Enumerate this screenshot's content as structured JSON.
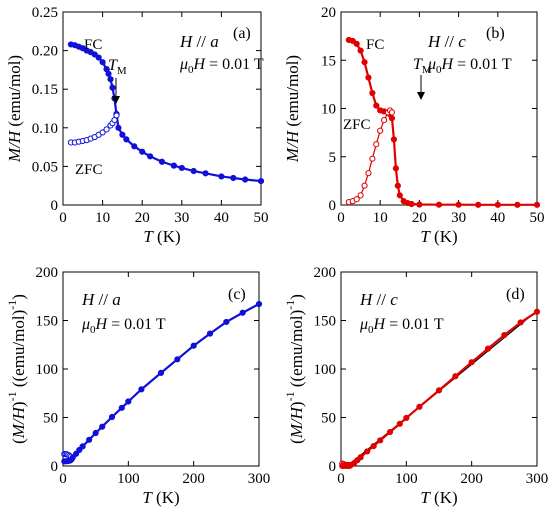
{
  "chart_data": [
    {
      "panel_label": "(a)",
      "type": "scatter",
      "xlabel": "T (K)",
      "ylabel": "M/H (emu/mol)",
      "xlim": [
        0,
        50
      ],
      "ylim": [
        0,
        0.25
      ],
      "xticks": [
        0,
        10,
        20,
        30,
        40,
        50
      ],
      "yticks": [
        0,
        0.05,
        0.1,
        0.15,
        0.2,
        0.25
      ],
      "ytick_labels": [
        "0",
        "0.05",
        "0.10",
        "0.15",
        "0.20",
        "0.25"
      ],
      "annotations": {
        "field_dir": "H // a",
        "field_value": "μ0H = 0.01 T",
        "tm_label": "TM",
        "fc_label": "FC",
        "zfc_label": "ZFC"
      },
      "color": "#1010d8",
      "series": [
        {
          "name": "FC",
          "marker": "filled",
          "x": [
            2,
            3,
            4,
            5,
            6,
            7,
            8,
            9,
            10,
            11,
            11.5,
            12,
            12.5,
            13,
            13.5,
            14,
            15,
            16,
            18,
            20,
            22,
            25,
            28,
            30,
            33,
            36,
            40,
            43,
            46,
            50
          ],
          "y": [
            0.208,
            0.207,
            0.205,
            0.203,
            0.2,
            0.198,
            0.195,
            0.191,
            0.185,
            0.176,
            0.17,
            0.163,
            0.152,
            0.138,
            0.118,
            0.1,
            0.091,
            0.085,
            0.076,
            0.069,
            0.063,
            0.056,
            0.051,
            0.048,
            0.044,
            0.041,
            0.037,
            0.035,
            0.033,
            0.031
          ]
        },
        {
          "name": "ZFC",
          "marker": "open",
          "x": [
            2,
            3,
            4,
            5,
            6,
            7,
            8,
            9,
            10,
            11,
            12,
            12.5,
            13,
            13.5
          ],
          "y": [
            0.081,
            0.081,
            0.082,
            0.083,
            0.084,
            0.086,
            0.088,
            0.091,
            0.094,
            0.098,
            0.103,
            0.106,
            0.11,
            0.116
          ]
        }
      ]
    },
    {
      "panel_label": "(b)",
      "type": "scatter",
      "xlabel": "T (K)",
      "ylabel": "M/H (emu/mol)",
      "xlim": [
        0,
        50
      ],
      "ylim": [
        0,
        20
      ],
      "xticks": [
        0,
        10,
        20,
        30,
        40,
        50
      ],
      "yticks": [
        0,
        5,
        10,
        15,
        20
      ],
      "ytick_labels": [
        "0",
        "5",
        "10",
        "15",
        "20"
      ],
      "annotations": {
        "field_dir": "H // c",
        "field_value": "μ0H = 0.01 T",
        "tm_label": "TM",
        "fc_label": "FC",
        "zfc_label": "ZFC"
      },
      "color": "#e00000",
      "series": [
        {
          "name": "FC",
          "marker": "filled",
          "x": [
            2,
            3,
            4,
            5,
            6,
            7,
            8,
            9,
            10,
            11,
            12,
            12.5,
            13,
            13.5,
            14,
            14.5,
            15,
            16,
            17,
            18,
            20,
            25,
            30,
            35,
            40,
            45,
            50
          ],
          "y": [
            17.1,
            17.0,
            16.7,
            16.0,
            14.8,
            13.2,
            11.6,
            10.3,
            9.8,
            9.7,
            9.6,
            9.4,
            9.0,
            6.8,
            3.8,
            2.0,
            1.0,
            0.4,
            0.2,
            0.1,
            0.05,
            0.03,
            0.03,
            0.02,
            0.02,
            0.02,
            0.02
          ]
        },
        {
          "name": "ZFC",
          "marker": "open",
          "x": [
            2,
            3,
            4,
            5,
            6,
            7,
            8,
            9,
            10,
            11,
            12,
            12.5,
            13
          ],
          "y": [
            0.3,
            0.4,
            0.6,
            1.0,
            2.0,
            3.3,
            4.8,
            6.3,
            7.7,
            8.8,
            9.6,
            9.8,
            9.6
          ]
        }
      ]
    },
    {
      "panel_label": "(c)",
      "type": "scatter",
      "xlabel": "T (K)",
      "ylabel": "(M/H)^-1 ((emu/mol)^-1)",
      "xlim": [
        0,
        300
      ],
      "ylim": [
        0,
        200
      ],
      "xticks": [
        0,
        100,
        200,
        300
      ],
      "yticks": [
        0,
        50,
        100,
        150,
        200
      ],
      "ytick_labels": [
        "0",
        "50",
        "100",
        "150",
        "200"
      ],
      "annotations": {
        "field_dir": "H // a",
        "field_value": "μ0H = 0.01 T"
      },
      "color": "#1010d8",
      "series": [
        {
          "name": "ZFC",
          "marker": "open",
          "x": [
            2,
            4,
            6,
            8,
            10,
            12
          ],
          "y": [
            12.3,
            12.3,
            12.0,
            11.4,
            10.5,
            9.6
          ]
        },
        {
          "name": "FC",
          "marker": "filled",
          "x": [
            2,
            5,
            8,
            11,
            13,
            15,
            20,
            25,
            30,
            40,
            50,
            60,
            75,
            90,
            100,
            120,
            150,
            175,
            200,
            225,
            250,
            275,
            300
          ],
          "y": [
            4.8,
            4.9,
            5.1,
            5.6,
            6.8,
            8.8,
            12.6,
            16.5,
            20.2,
            27.0,
            34.0,
            40.5,
            50.5,
            60.0,
            66.5,
            79.0,
            96.0,
            110.0,
            124.0,
            136.5,
            148.5,
            158.0,
            167.0
          ]
        }
      ]
    },
    {
      "panel_label": "(d)",
      "type": "scatter",
      "xlabel": "T (K)",
      "ylabel": "(M/H)^-1 ((emu/mol)^-1)",
      "xlim": [
        0,
        300
      ],
      "ylim": [
        0,
        200
      ],
      "xticks": [
        0,
        100,
        200,
        300
      ],
      "yticks": [
        0,
        50,
        100,
        150,
        200
      ],
      "ytick_labels": [
        "0",
        "50",
        "100",
        "150",
        "200"
      ],
      "annotations": {
        "field_dir": "H // c",
        "field_value": "μ0H = 0.01 T"
      },
      "color": "#e00000",
      "fit_line": {
        "x": [
          10,
          300
        ],
        "y": [
          0,
          160
        ]
      },
      "series": [
        {
          "name": "ZFC",
          "marker": "open",
          "x": [
            2,
            4,
            6,
            8,
            10,
            12
          ],
          "y": [
            2.5,
            2.0,
            1.5,
            1.2,
            1.0,
            0.9
          ]
        },
        {
          "name": "FC",
          "marker": "filled",
          "x": [
            2,
            5,
            8,
            11,
            13,
            15,
            20,
            25,
            30,
            40,
            50,
            60,
            75,
            90,
            100,
            120,
            150,
            175,
            200,
            225,
            250,
            275,
            300
          ],
          "y": [
            0.06,
            0.06,
            0.08,
            0.1,
            0.1,
            1.0,
            3.0,
            6.0,
            9.0,
            15.0,
            20.5,
            26.5,
            35.0,
            43.5,
            49.5,
            61.0,
            78.0,
            92.5,
            107.0,
            121.0,
            135.0,
            148.0,
            159.0
          ]
        }
      ]
    }
  ]
}
